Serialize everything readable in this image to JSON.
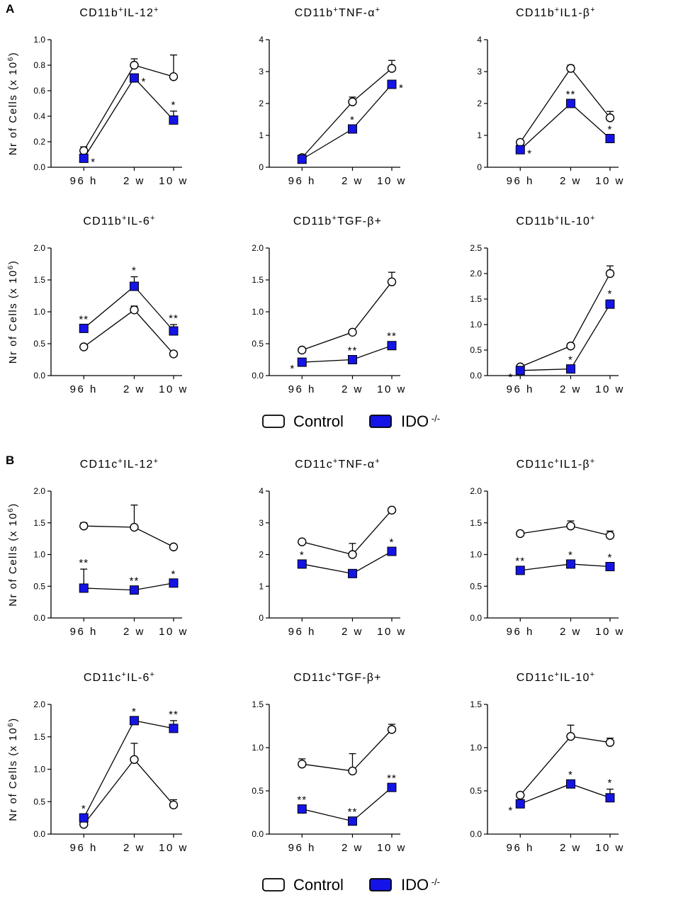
{
  "panels": [
    {
      "label": "A",
      "legend": {
        "control": "Control",
        "ido": "IDO",
        "ido_sup": "-/-"
      }
    },
    {
      "label": "B",
      "legend": {
        "control": "Control",
        "ido": "IDO",
        "ido_sup": "-/-"
      }
    }
  ],
  "ylabel": {
    "text": "Nr of Cells (x 10",
    "sup": "6",
    "close": ")"
  },
  "series_names": [
    "Control",
    "IDO-/-"
  ],
  "colors": {
    "ido_fill": "#1414e6",
    "line": "#000000"
  },
  "chart_data": [
    {
      "type": "line",
      "title": [
        {
          "t": "CD11b"
        },
        {
          "t": "+",
          "s": 1
        },
        {
          "t": "IL-12"
        },
        {
          "t": "+",
          "s": 1
        }
      ],
      "categories": [
        "96 h",
        "2 w",
        "10 w"
      ],
      "ylim": [
        0,
        1.0
      ],
      "yticks": [
        "0.0",
        "0.2",
        "0.4",
        "0.6",
        "0.8",
        "1.0"
      ],
      "series": [
        {
          "name": "Control",
          "values": [
            0.13,
            0.8,
            0.71
          ],
          "err": [
            0.03,
            0.05,
            0.17
          ]
        },
        {
          "name": "IDO-/-",
          "values": [
            0.07,
            0.7,
            0.37
          ],
          "err": [
            0,
            0,
            0.07
          ]
        }
      ],
      "annotations": [
        {
          "i": 0,
          "text": "*",
          "pos": "right"
        },
        {
          "i": 1,
          "text": "*",
          "pos": "right"
        },
        {
          "i": 2,
          "text": "*",
          "pos": "above"
        }
      ]
    },
    {
      "type": "line",
      "title": [
        {
          "t": "CD11b"
        },
        {
          "t": "+",
          "s": 1
        },
        {
          "t": "TNF-α"
        },
        {
          "t": "+",
          "s": 1
        }
      ],
      "categories": [
        "96 h",
        "2 w",
        "10 w"
      ],
      "ylim": [
        0,
        4
      ],
      "yticks": [
        "0",
        "1",
        "2",
        "3",
        "4"
      ],
      "series": [
        {
          "name": "Control",
          "values": [
            0.3,
            2.05,
            3.1
          ],
          "err": [
            0.05,
            0.15,
            0.25
          ]
        },
        {
          "name": "IDO-/-",
          "values": [
            0.25,
            1.2,
            2.6
          ],
          "err": [
            0,
            0,
            0
          ]
        }
      ],
      "annotations": [
        {
          "i": 1,
          "text": "*",
          "pos": "above"
        },
        {
          "i": 2,
          "text": "*",
          "pos": "right"
        }
      ]
    },
    {
      "type": "line",
      "title": [
        {
          "t": "CD11b"
        },
        {
          "t": "+",
          "s": 1
        },
        {
          "t": "IL1-β"
        },
        {
          "t": "+",
          "s": 1
        }
      ],
      "categories": [
        "96 h",
        "2 w",
        "10 w"
      ],
      "ylim": [
        0,
        4
      ],
      "yticks": [
        "0",
        "1",
        "2",
        "3",
        "4"
      ],
      "series": [
        {
          "name": "Control",
          "values": [
            0.78,
            3.1,
            1.55
          ],
          "err": [
            0.05,
            0.1,
            0.2
          ]
        },
        {
          "name": "IDO-/-",
          "values": [
            0.55,
            2.0,
            0.9
          ],
          "err": [
            0,
            0,
            0
          ]
        }
      ],
      "annotations": [
        {
          "i": 0,
          "text": "*",
          "pos": "right"
        },
        {
          "i": 1,
          "text": "**",
          "pos": "above"
        },
        {
          "i": 2,
          "text": "*",
          "pos": "above"
        }
      ]
    },
    {
      "type": "line",
      "title": [
        {
          "t": "CD11b"
        },
        {
          "t": "+",
          "s": 1
        },
        {
          "t": "IL-6"
        },
        {
          "t": "+",
          "s": 1
        }
      ],
      "categories": [
        "96 h",
        "2 w",
        "10 w"
      ],
      "ylim": [
        0,
        2.0
      ],
      "yticks": [
        "0.0",
        "0.5",
        "1.0",
        "1.5",
        "2.0"
      ],
      "series": [
        {
          "name": "Control",
          "values": [
            0.45,
            1.03,
            0.34
          ],
          "err": [
            0.02,
            0.06,
            0.04
          ]
        },
        {
          "name": "IDO-/-",
          "values": [
            0.74,
            1.4,
            0.7
          ],
          "err": [
            0,
            0.15,
            0.1
          ]
        }
      ],
      "annotations": [
        {
          "i": 0,
          "text": "**",
          "pos": "above"
        },
        {
          "i": 1,
          "text": "*",
          "pos": "above"
        },
        {
          "i": 2,
          "text": "**",
          "pos": "above"
        }
      ]
    },
    {
      "type": "line",
      "title": [
        {
          "t": "CD11b"
        },
        {
          "t": "+",
          "s": 1
        },
        {
          "t": "TGF-β+"
        }
      ],
      "categories": [
        "96 h",
        "2 w",
        "10 w"
      ],
      "ylim": [
        0,
        2.0
      ],
      "yticks": [
        "0.0",
        "0.5",
        "1.0",
        "1.5",
        "2.0"
      ],
      "series": [
        {
          "name": "Control",
          "values": [
            0.4,
            0.68,
            1.47
          ],
          "err": [
            0.02,
            0.03,
            0.15
          ]
        },
        {
          "name": "IDO-/-",
          "values": [
            0.21,
            0.25,
            0.47
          ],
          "err": [
            0,
            0,
            0.05
          ]
        }
      ],
      "annotations": [
        {
          "i": 0,
          "text": "*",
          "pos": "left"
        },
        {
          "i": 1,
          "text": "**",
          "pos": "above"
        },
        {
          "i": 2,
          "text": "**",
          "pos": "above"
        }
      ]
    },
    {
      "type": "line",
      "title": [
        {
          "t": "CD11b"
        },
        {
          "t": "+",
          "s": 1
        },
        {
          "t": "IL-10"
        },
        {
          "t": "+",
          "s": 1
        }
      ],
      "categories": [
        "96 h",
        "2 w",
        "10 w"
      ],
      "ylim": [
        0,
        2.5
      ],
      "yticks": [
        "0.0",
        "0.5",
        "1.0",
        "1.5",
        "2.0",
        "2.5"
      ],
      "series": [
        {
          "name": "Control",
          "values": [
            0.17,
            0.58,
            2.0
          ],
          "err": [
            0.02,
            0.05,
            0.15
          ]
        },
        {
          "name": "IDO-/-",
          "values": [
            0.1,
            0.13,
            1.4
          ],
          "err": [
            0,
            0,
            0.08
          ]
        }
      ],
      "annotations": [
        {
          "i": 0,
          "text": "*",
          "pos": "left"
        },
        {
          "i": 1,
          "text": "*",
          "pos": "above"
        },
        {
          "i": 2,
          "text": "*",
          "pos": "above"
        }
      ]
    },
    {
      "type": "line",
      "title": [
        {
          "t": "CD11c"
        },
        {
          "t": "+",
          "s": 1
        },
        {
          "t": "IL-12"
        },
        {
          "t": "+",
          "s": 1
        }
      ],
      "categories": [
        "96 h",
        "2 w",
        "10 w"
      ],
      "ylim": [
        0,
        2.0
      ],
      "yticks": [
        "0.0",
        "0.5",
        "1.0",
        "1.5",
        "2.0"
      ],
      "series": [
        {
          "name": "Control",
          "values": [
            1.45,
            1.43,
            1.12
          ],
          "err": [
            0.05,
            0.35,
            0.02
          ]
        },
        {
          "name": "IDO-/-",
          "values": [
            0.47,
            0.44,
            0.55
          ],
          "err": [
            0.3,
            0,
            0
          ]
        }
      ],
      "annotations": [
        {
          "i": 0,
          "text": "**",
          "pos": "above"
        },
        {
          "i": 1,
          "text": "**",
          "pos": "above"
        },
        {
          "i": 2,
          "text": "*",
          "pos": "above"
        }
      ]
    },
    {
      "type": "line",
      "title": [
        {
          "t": "CD11c"
        },
        {
          "t": "+",
          "s": 1
        },
        {
          "t": "TNF-α"
        },
        {
          "t": "+",
          "s": 1
        }
      ],
      "categories": [
        "96 h",
        "2 w",
        "10 w"
      ],
      "ylim": [
        0,
        4
      ],
      "yticks": [
        "0",
        "1",
        "2",
        "3",
        "4"
      ],
      "series": [
        {
          "name": "Control",
          "values": [
            2.4,
            2.0,
            3.4
          ],
          "err": [
            0.02,
            0.35,
            0.05
          ]
        },
        {
          "name": "IDO-/-",
          "values": [
            1.7,
            1.4,
            2.1
          ],
          "err": [
            0,
            0,
            0
          ]
        }
      ],
      "annotations": [
        {
          "i": 0,
          "text": "*",
          "pos": "above"
        },
        {
          "i": 2,
          "text": "*",
          "pos": "above"
        }
      ]
    },
    {
      "type": "line",
      "title": [
        {
          "t": "CD11c"
        },
        {
          "t": "+",
          "s": 1
        },
        {
          "t": "IL1-β"
        },
        {
          "t": "+",
          "s": 1
        }
      ],
      "categories": [
        "96 h",
        "2 w",
        "10 w"
      ],
      "ylim": [
        0,
        2.0
      ],
      "yticks": [
        "0.0",
        "0.5",
        "1.0",
        "1.5",
        "2.0"
      ],
      "series": [
        {
          "name": "Control",
          "values": [
            1.33,
            1.45,
            1.3
          ],
          "err": [
            0.02,
            0.08,
            0.07
          ]
        },
        {
          "name": "IDO-/-",
          "values": [
            0.75,
            0.85,
            0.81
          ],
          "err": [
            0.05,
            0,
            0
          ]
        }
      ],
      "annotations": [
        {
          "i": 0,
          "text": "**",
          "pos": "above"
        },
        {
          "i": 1,
          "text": "*",
          "pos": "above"
        },
        {
          "i": 2,
          "text": "*",
          "pos": "above"
        }
      ]
    },
    {
      "type": "line",
      "title": [
        {
          "t": "CD11c"
        },
        {
          "t": "+",
          "s": 1
        },
        {
          "t": "IL-6"
        },
        {
          "t": "+",
          "s": 1
        }
      ],
      "categories": [
        "96 h",
        "2 w",
        "10 w"
      ],
      "ylim": [
        0,
        2.0
      ],
      "yticks": [
        "0.0",
        "0.5",
        "1.0",
        "1.5",
        "2.0"
      ],
      "series": [
        {
          "name": "Control",
          "values": [
            0.15,
            1.15,
            0.45
          ],
          "err": [
            0.02,
            0.25,
            0.08
          ]
        },
        {
          "name": "IDO-/-",
          "values": [
            0.25,
            1.75,
            1.63
          ],
          "err": [
            0,
            0,
            0.12
          ]
        }
      ],
      "annotations": [
        {
          "i": 0,
          "text": "*",
          "pos": "above"
        },
        {
          "i": 1,
          "text": "*",
          "pos": "above"
        },
        {
          "i": 2,
          "text": "**",
          "pos": "above"
        }
      ]
    },
    {
      "type": "line",
      "title": [
        {
          "t": "CD11c"
        },
        {
          "t": "+",
          "s": 1
        },
        {
          "t": "TGF-β+"
        }
      ],
      "categories": [
        "96 h",
        "2 w",
        "10 w"
      ],
      "ylim": [
        0,
        1.5
      ],
      "yticks": [
        "0.0",
        "0.5",
        "1.0",
        "1.5"
      ],
      "series": [
        {
          "name": "Control",
          "values": [
            0.81,
            0.73,
            1.21
          ],
          "err": [
            0.06,
            0.2,
            0.06
          ]
        },
        {
          "name": "IDO-/-",
          "values": [
            0.29,
            0.15,
            0.54
          ],
          "err": [
            0,
            0,
            0
          ]
        }
      ],
      "annotations": [
        {
          "i": 0,
          "text": "**",
          "pos": "above"
        },
        {
          "i": 1,
          "text": "**",
          "pos": "above"
        },
        {
          "i": 2,
          "text": "**",
          "pos": "above"
        }
      ]
    },
    {
      "type": "line",
      "title": [
        {
          "t": "CD11c"
        },
        {
          "t": "+",
          "s": 1
        },
        {
          "t": "IL-10"
        },
        {
          "t": "+",
          "s": 1
        }
      ],
      "categories": [
        "96 h",
        "2 w",
        "10 w"
      ],
      "ylim": [
        0,
        1.5
      ],
      "yticks": [
        "0.0",
        "0.5",
        "1.0",
        "1.5"
      ],
      "series": [
        {
          "name": "Control",
          "values": [
            0.45,
            1.13,
            1.06
          ],
          "err": [
            0.02,
            0.13,
            0.05
          ]
        },
        {
          "name": "IDO-/-",
          "values": [
            0.35,
            0.58,
            0.42
          ],
          "err": [
            0,
            0,
            0.1
          ]
        }
      ],
      "annotations": [
        {
          "i": 0,
          "text": "*",
          "pos": "left"
        },
        {
          "i": 1,
          "text": "*",
          "pos": "above"
        },
        {
          "i": 2,
          "text": "*",
          "pos": "above"
        }
      ]
    }
  ]
}
